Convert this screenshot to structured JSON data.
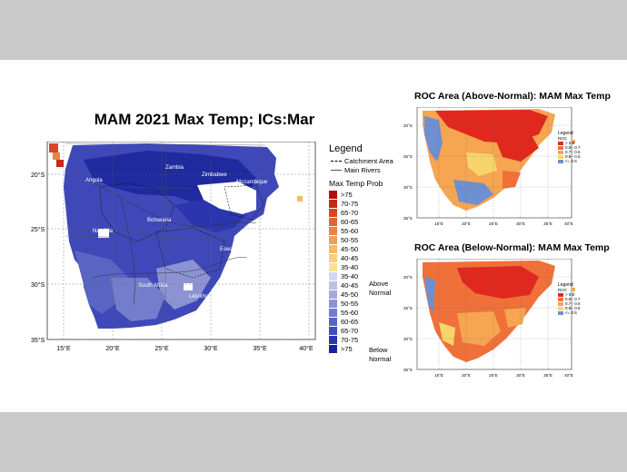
{
  "main_map": {
    "title": "MAM 2021 Max Temp; ICs:Mar",
    "lat_labels": [
      "20°S",
      "25°S",
      "30°S",
      "35°S"
    ],
    "lon_labels": [
      "15°E",
      "20°E",
      "25°E",
      "30°E",
      "35°E",
      "40°E"
    ],
    "place_labels": [
      "Angola",
      "Zambia",
      "Zimbabwe",
      "Namibia",
      "Botswana",
      "Mozambique",
      "South Africa",
      "Lesotho",
      "Eswatini"
    ]
  },
  "legend": {
    "title": "Legend",
    "lines": [
      "Catchment Area",
      "Main Rivers"
    ],
    "prob_title": "Max Temp Prob",
    "above_items": [
      {
        "label": ">75",
        "color": "#b30d0d"
      },
      {
        "label": "70-75",
        "color": "#c62a18"
      },
      {
        "label": "65-70",
        "color": "#d54826"
      },
      {
        "label": "60-65",
        "color": "#e06536"
      },
      {
        "label": "55-60",
        "color": "#ea8347"
      },
      {
        "label": "50-55",
        "color": "#f09f59"
      },
      {
        "label": "45-50",
        "color": "#f4b96b"
      },
      {
        "label": "40-45",
        "color": "#f7cf7e"
      },
      {
        "label": "35-40",
        "color": "#f9e095"
      }
    ],
    "below_items": [
      {
        "label": "35-40",
        "color": "#d4d7ec"
      },
      {
        "label": "40-45",
        "color": "#bcc0e3"
      },
      {
        "label": "45-50",
        "color": "#a4aadb"
      },
      {
        "label": "50-55",
        "color": "#8c93d3"
      },
      {
        "label": "55-60",
        "color": "#747dcb"
      },
      {
        "label": "60-65",
        "color": "#5a64c3"
      },
      {
        "label": "65-70",
        "color": "#424dba"
      },
      {
        "label": "70-75",
        "color": "#2a35ae"
      },
      {
        "label": ">75",
        "color": "#1a2298"
      }
    ],
    "above_label": [
      "Above",
      "Normal"
    ],
    "below_label": [
      "Below",
      "Normal"
    ]
  },
  "roc_above": {
    "title": "ROC Area (Above-Normal): MAM Max Temp",
    "lat_labels": [
      "20°S",
      "25°S",
      "30°S",
      "35°S"
    ],
    "lon_labels": [
      "15°E",
      "20°E",
      "25°E",
      "30°E",
      "35°E",
      "40°E"
    ]
  },
  "roc_below": {
    "title": "ROC Area (Below-Normal): MAM Max Temp",
    "lat_labels": [
      "20°S",
      "25°S",
      "30°S",
      "35°S"
    ],
    "lon_labels": [
      "15°E",
      "20°E",
      "25°E",
      "30°E",
      "35°E",
      "40°E"
    ]
  },
  "roc_legend": {
    "title": "Legend",
    "subtitle": "ROC",
    "items": [
      {
        "label": "> 0.8",
        "color": "#e0281e"
      },
      {
        "label": "0.8 - 0.7",
        "color": "#f0703a"
      },
      {
        "label": "0.7 - 0.6",
        "color": "#f6a550"
      },
      {
        "label": "0.6 - 0.5",
        "color": "#f7d56c"
      },
      {
        "label": "<= 0.5",
        "color": "#6e8fd0"
      }
    ]
  }
}
